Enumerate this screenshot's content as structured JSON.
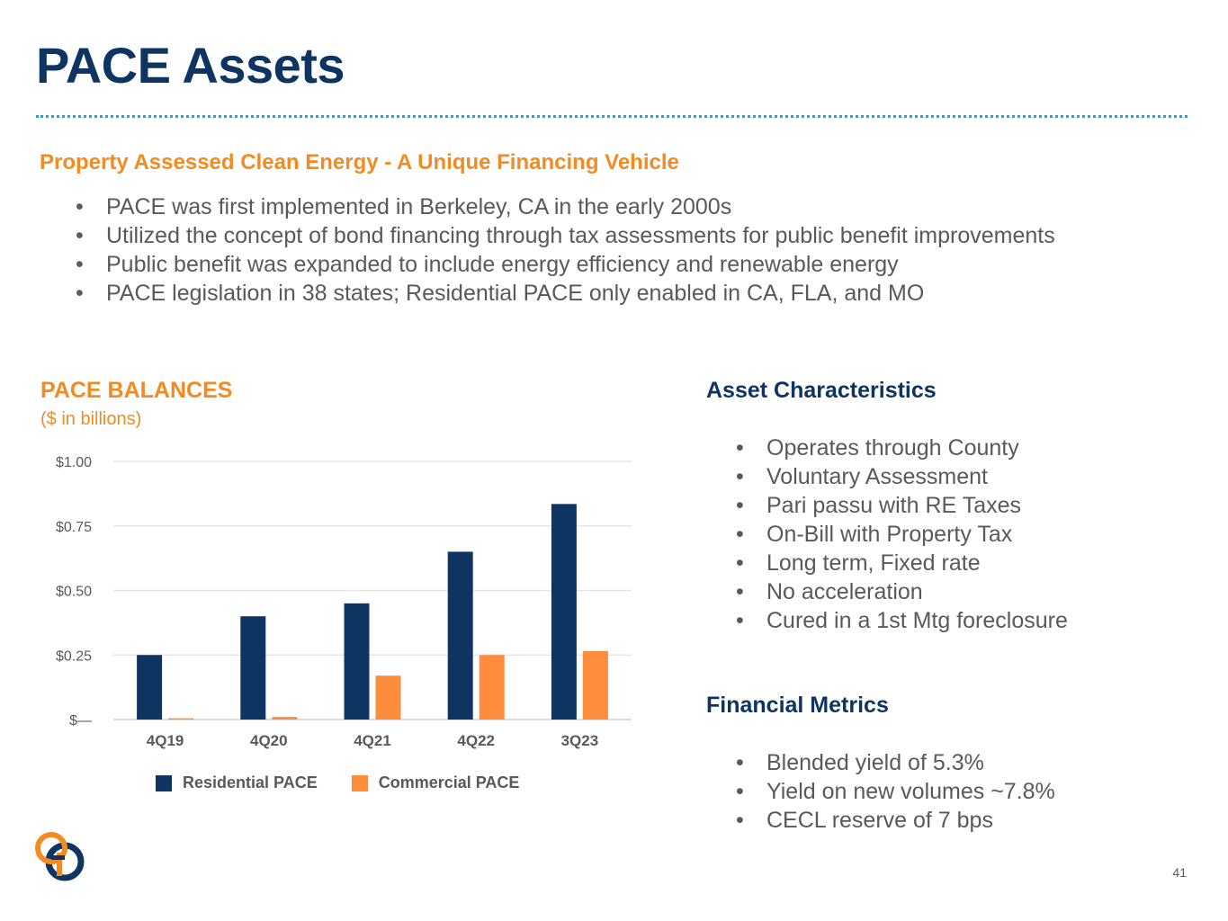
{
  "slide": {
    "title": "PACE Assets",
    "subtitle": "Property Assessed Clean Energy - A Unique Financing Vehicle",
    "intro_bullets": [
      "PACE was first implemented in Berkeley, CA in the early 2000s",
      "Utilized the concept of bond financing through tax assessments for public benefit improvements",
      "Public benefit was expanded to include energy efficiency and renewable energy",
      "PACE legislation in 38 states; Residential PACE only enabled in CA, FLA, and MO"
    ],
    "page_number": "41"
  },
  "asset_characteristics": {
    "title": "Asset Characteristics",
    "items": [
      "Operates through County",
      "Voluntary Assessment",
      "Pari passu with RE Taxes",
      "On-Bill with Property Tax",
      "Long term, Fixed rate",
      "No acceleration",
      "Cured in a 1st Mtg foreclosure"
    ]
  },
  "financial_metrics": {
    "title": "Financial Metrics",
    "items": [
      "Blended yield of 5.3%",
      "Yield on new volumes ~7.8%",
      "CECL reserve of 7 bps"
    ]
  },
  "colors": {
    "navy": "#0e3461",
    "orange": "#f28b22",
    "dotted_rule": "#2a9fd6",
    "body_text": "#595959"
  },
  "logo": {
    "icon": "company-logo-icon"
  },
  "chart_data": {
    "type": "bar",
    "title": "PACE BALANCES",
    "subtitle": "($ in billions)",
    "categories": [
      "4Q19",
      "4Q20",
      "4Q21",
      "4Q22",
      "3Q23"
    ],
    "series": [
      {
        "name": "Residential PACE",
        "color": "#0e3461",
        "values": [
          0.25,
          0.4,
          0.45,
          0.65,
          0.835
        ]
      },
      {
        "name": "Commercial PACE",
        "color": "#fd8d3c",
        "values": [
          0.005,
          0.01,
          0.17,
          0.25,
          0.265
        ]
      }
    ],
    "y_ticks": [
      {
        "value": 0,
        "label": "$—"
      },
      {
        "value": 0.25,
        "label": "$0.25"
      },
      {
        "value": 0.5,
        "label": "$0.50"
      },
      {
        "value": 0.75,
        "label": "$0.75"
      },
      {
        "value": 1.0,
        "label": "$1.00"
      }
    ],
    "ylim": [
      0,
      1.0
    ],
    "grid": true,
    "legend_position": "bottom"
  }
}
